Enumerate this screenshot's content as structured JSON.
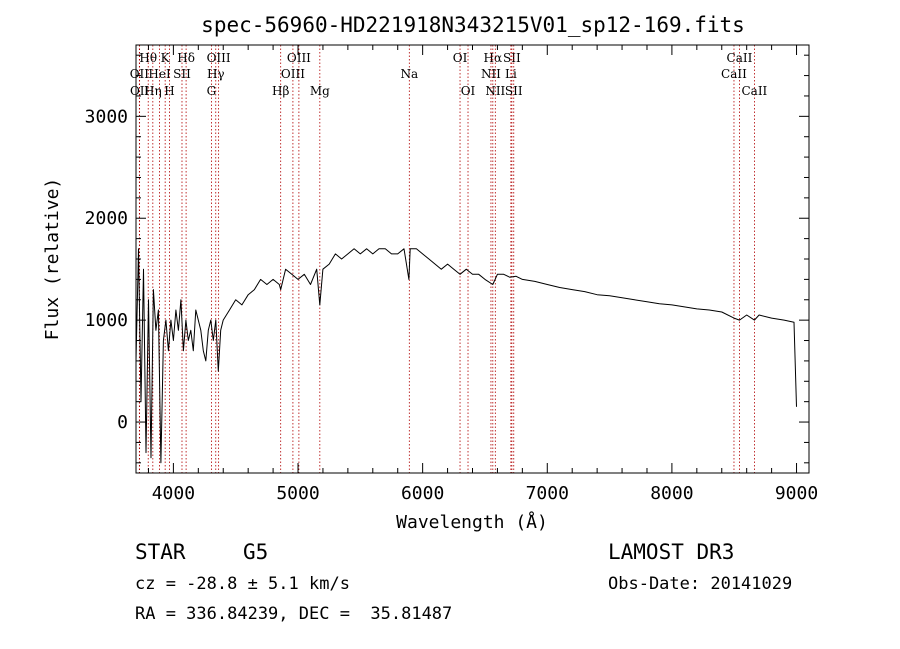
{
  "chart_data": {
    "type": "line",
    "title": "spec-56960-HD221918N343215V01_sp12-169.fits",
    "xlabel": "Wavelength (Å)",
    "ylabel": "Flux (relative)",
    "xlim": [
      3700,
      9100
    ],
    "ylim": [
      -500,
      3700
    ],
    "xticks": [
      4000,
      5000,
      6000,
      7000,
      8000,
      9000
    ],
    "yticks": [
      0,
      1000,
      2000,
      3000
    ],
    "series": [
      {
        "name": "spectrum",
        "x": [
          3700,
          3720,
          3740,
          3760,
          3780,
          3800,
          3820,
          3840,
          3860,
          3880,
          3900,
          3920,
          3940,
          3960,
          3980,
          4000,
          4020,
          4040,
          4060,
          4080,
          4100,
          4120,
          4140,
          4160,
          4180,
          4200,
          4220,
          4240,
          4260,
          4280,
          4300,
          4320,
          4340,
          4360,
          4380,
          4400,
          4450,
          4500,
          4550,
          4600,
          4650,
          4700,
          4750,
          4800,
          4850,
          4861,
          4900,
          4950,
          5000,
          5050,
          5100,
          5150,
          5175,
          5200,
          5250,
          5300,
          5350,
          5400,
          5450,
          5500,
          5550,
          5600,
          5650,
          5700,
          5750,
          5800,
          5850,
          5890,
          5900,
          5950,
          6000,
          6050,
          6100,
          6150,
          6200,
          6250,
          6300,
          6350,
          6400,
          6450,
          6500,
          6563,
          6600,
          6650,
          6700,
          6750,
          6800,
          6900,
          7000,
          7100,
          7200,
          7300,
          7400,
          7500,
          7600,
          7700,
          7800,
          7900,
          8000,
          8100,
          8200,
          8300,
          8400,
          8498,
          8542,
          8600,
          8662,
          8700,
          8800,
          8900,
          8980,
          9000
        ],
        "values": [
          600,
          1700,
          200,
          1500,
          -300,
          1200,
          -350,
          1300,
          900,
          1100,
          -400,
          800,
          1000,
          700,
          1000,
          800,
          1100,
          900,
          1200,
          700,
          1000,
          800,
          900,
          700,
          1100,
          1000,
          900,
          700,
          600,
          900,
          1000,
          800,
          1000,
          500,
          900,
          1000,
          1100,
          1200,
          1150,
          1250,
          1300,
          1400,
          1350,
          1400,
          1350,
          1300,
          1500,
          1450,
          1400,
          1450,
          1350,
          1500,
          1150,
          1500,
          1550,
          1650,
          1600,
          1650,
          1700,
          1650,
          1700,
          1650,
          1700,
          1700,
          1650,
          1650,
          1700,
          1400,
          1700,
          1700,
          1650,
          1600,
          1550,
          1500,
          1550,
          1500,
          1450,
          1500,
          1450,
          1450,
          1400,
          1350,
          1450,
          1450,
          1420,
          1430,
          1400,
          1380,
          1350,
          1320,
          1300,
          1280,
          1250,
          1240,
          1220,
          1200,
          1180,
          1160,
          1150,
          1130,
          1110,
          1100,
          1080,
          1020,
          1000,
          1050,
          1000,
          1050,
          1020,
          1000,
          980,
          150
        ]
      }
    ],
    "lines": [
      {
        "label": "Hθ",
        "wl": 3798,
        "row": 1
      },
      {
        "label": "OII",
        "wl": 3727,
        "row": 2
      },
      {
        "label": "OII",
        "wl": 3729,
        "row": 3
      },
      {
        "label": "K",
        "wl": 3934,
        "row": 1
      },
      {
        "label": "Hη",
        "wl": 3835,
        "row": 3
      },
      {
        "label": "HeI",
        "wl": 3889,
        "row": 2
      },
      {
        "label": "SII",
        "wl": 4069,
        "row": 2
      },
      {
        "label": "H",
        "wl": 3969,
        "row": 3
      },
      {
        "label": "Hδ",
        "wl": 4102,
        "row": 1
      },
      {
        "label": "OIII",
        "wl": 4363,
        "row": 1
      },
      {
        "label": "Hγ",
        "wl": 4340,
        "row": 2
      },
      {
        "label": "G",
        "wl": 4305,
        "row": 3
      },
      {
        "label": "OIII",
        "wl": 5007,
        "row": 1
      },
      {
        "label": "OIII",
        "wl": 4959,
        "row": 2
      },
      {
        "label": "Hβ",
        "wl": 4861,
        "row": 3
      },
      {
        "label": "Mg",
        "wl": 5175,
        "row": 3
      },
      {
        "label": "Na",
        "wl": 5893,
        "row": 2
      },
      {
        "label": "OI",
        "wl": 6300,
        "row": 1
      },
      {
        "label": "OI",
        "wl": 6364,
        "row": 3
      },
      {
        "label": "Hα",
        "wl": 6563,
        "row": 1
      },
      {
        "label": "SII",
        "wl": 6716,
        "row": 1
      },
      {
        "label": "NII",
        "wl": 6548,
        "row": 2
      },
      {
        "label": "Li",
        "wl": 6708,
        "row": 2
      },
      {
        "label": "NII",
        "wl": 6583,
        "row": 3
      },
      {
        "label": "SII",
        "wl": 6731,
        "row": 3
      },
      {
        "label": "CaII",
        "wl": 8542,
        "row": 1
      },
      {
        "label": "CaII",
        "wl": 8498,
        "row": 2
      },
      {
        "label": "CaII",
        "wl": 8662,
        "row": 3
      }
    ]
  },
  "info": {
    "class": "STAR",
    "subclass": "G5",
    "survey": "LAMOST DR3",
    "cz": "cz = -28.8 ± 5.1 km/s",
    "obs_date": "Obs-Date: 20141029",
    "coords": "RA = 336.84239, DEC =  35.81487"
  },
  "colors": {
    "line_marker": "#b00000",
    "spectrum": "#000000"
  }
}
